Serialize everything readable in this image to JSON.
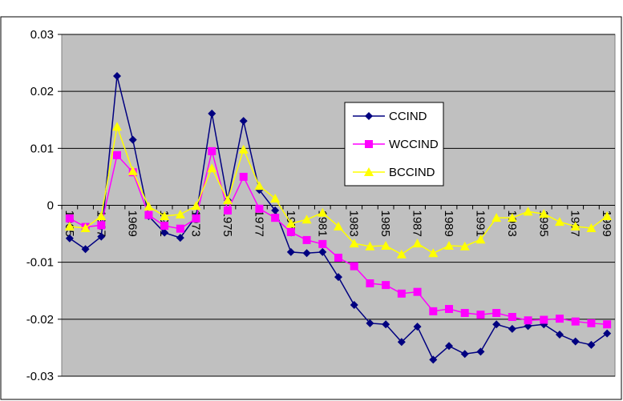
{
  "chart_data": {
    "type": "line",
    "categories": [
      "1965",
      null,
      "1967",
      null,
      "1969",
      null,
      "1971",
      null,
      "1973",
      null,
      "1975",
      null,
      "1977",
      null,
      "1979",
      null,
      "1981",
      null,
      "1983",
      null,
      "1985",
      null,
      "1987",
      null,
      "1989",
      null,
      "1991",
      null,
      "1993",
      null,
      "1995",
      null,
      "1997",
      null,
      "1999"
    ],
    "series": [
      {
        "name": "CCIND",
        "color": "#000080",
        "marker": "diamond",
        "values": [
          -0.0058,
          -0.0077,
          -0.0055,
          0.0227,
          0.0115,
          -0.0019,
          -0.0048,
          -0.0057,
          -0.0019,
          0.0161,
          0.0009,
          0.0148,
          0.0027,
          -0.0009,
          -0.0082,
          -0.0084,
          -0.0082,
          -0.0126,
          -0.0175,
          -0.0207,
          -0.0209,
          -0.024,
          -0.0213,
          -0.0271,
          -0.0247,
          -0.0261,
          -0.0257,
          -0.0209,
          -0.0217,
          -0.0212,
          -0.0209,
          -0.0227,
          -0.0239,
          -0.0245,
          -0.0225
        ]
      },
      {
        "name": "WCCIND",
        "color": "#ff00ff",
        "marker": "square",
        "values": [
          -0.0023,
          -0.0038,
          -0.0035,
          0.0088,
          0.0058,
          -0.0017,
          -0.0036,
          -0.0041,
          -0.0023,
          0.0095,
          -0.0009,
          0.005,
          -0.0006,
          -0.0022,
          -0.0047,
          -0.0061,
          -0.0068,
          -0.0092,
          -0.0107,
          -0.0137,
          -0.014,
          -0.0155,
          -0.0152,
          -0.0186,
          -0.0182,
          -0.0189,
          -0.0192,
          -0.0189,
          -0.0196,
          -0.0202,
          -0.0201,
          -0.0199,
          -0.0204,
          -0.0207,
          -0.0209
        ]
      },
      {
        "name": "BCCIND",
        "color": "#ffff00",
        "marker": "triangle",
        "values": [
          -0.0037,
          -0.004,
          -0.0019,
          0.0138,
          0.006,
          -0.0002,
          -0.0019,
          -0.0016,
          -0.0001,
          0.0065,
          0.0009,
          0.0098,
          0.0034,
          0.0012,
          -0.0032,
          -0.0025,
          -0.0013,
          -0.0037,
          -0.0067,
          -0.0072,
          -0.0071,
          -0.0086,
          -0.0067,
          -0.0084,
          -0.0071,
          -0.0072,
          -0.006,
          -0.0022,
          -0.0022,
          -0.0011,
          -0.0015,
          -0.0029,
          -0.0037,
          -0.004,
          -0.0019
        ]
      }
    ],
    "ylim": [
      -0.03,
      0.03
    ],
    "yticks": [
      0.03,
      0.02,
      0.01,
      0,
      -0.01,
      -0.02,
      -0.03
    ],
    "grid": true
  }
}
